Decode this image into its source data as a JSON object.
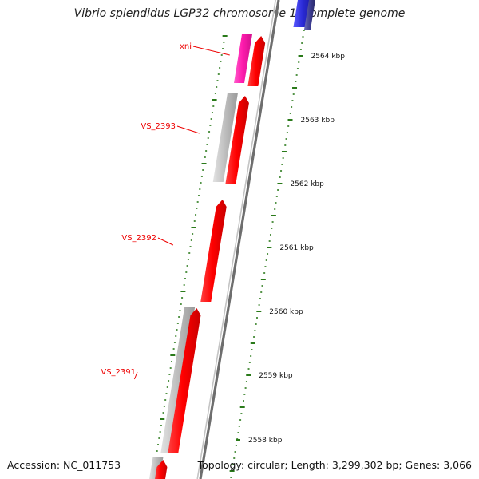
{
  "title": "Vibrio splendidus LGP32 chromosome 1, complete genome",
  "footer": {
    "accession": "Accession: NC_011753",
    "stats": "Topology: circular; Length: 3,299,302 bp; Genes: 3,066"
  },
  "colors": {
    "background": "#ffffff",
    "gene_label": "#ee0000",
    "gc_tick": "#2a7a1a",
    "backbone_dark": "#6e6e6e",
    "backbone_light": "#c4c4c4",
    "cds_red": "#ff0000",
    "trna_magenta": "#ff1cae",
    "gene_grey": "#bdbdbd",
    "blue": "#2a2ad6",
    "navy": "#3b3b8f"
  },
  "scale": {
    "ticks": [
      {
        "label": "2564 kbp"
      },
      {
        "label": "2563 kbp"
      },
      {
        "label": "2562 kbp"
      },
      {
        "label": "2561 kbp"
      },
      {
        "label": "2560 kbp"
      },
      {
        "label": "2559 kbp"
      },
      {
        "label": "2558 kbp"
      }
    ]
  },
  "gene_labels": [
    {
      "label": "xni"
    },
    {
      "label": "VS_2393"
    },
    {
      "label": "VS_2392"
    },
    {
      "label": "VS_2391"
    }
  ],
  "features": [
    {
      "type": "gene",
      "color": "blue"
    },
    {
      "type": "gene",
      "color": "navy"
    },
    {
      "type": "tRNA",
      "color": "trna_magenta",
      "name": "xni"
    },
    {
      "type": "CDS",
      "color": "cds_red",
      "name": "xni"
    },
    {
      "type": "gene",
      "color": "gene_grey",
      "name": "VS_2393"
    },
    {
      "type": "CDS",
      "color": "cds_red",
      "name": "VS_2393"
    },
    {
      "type": "CDS",
      "color": "cds_red",
      "name": "VS_2392"
    },
    {
      "type": "gene",
      "color": "gene_grey",
      "name": "VS_2391"
    },
    {
      "type": "CDS",
      "color": "cds_red",
      "name": "VS_2391"
    },
    {
      "type": "gene",
      "color": "gene_grey"
    },
    {
      "type": "CDS",
      "color": "cds_red"
    }
  ]
}
